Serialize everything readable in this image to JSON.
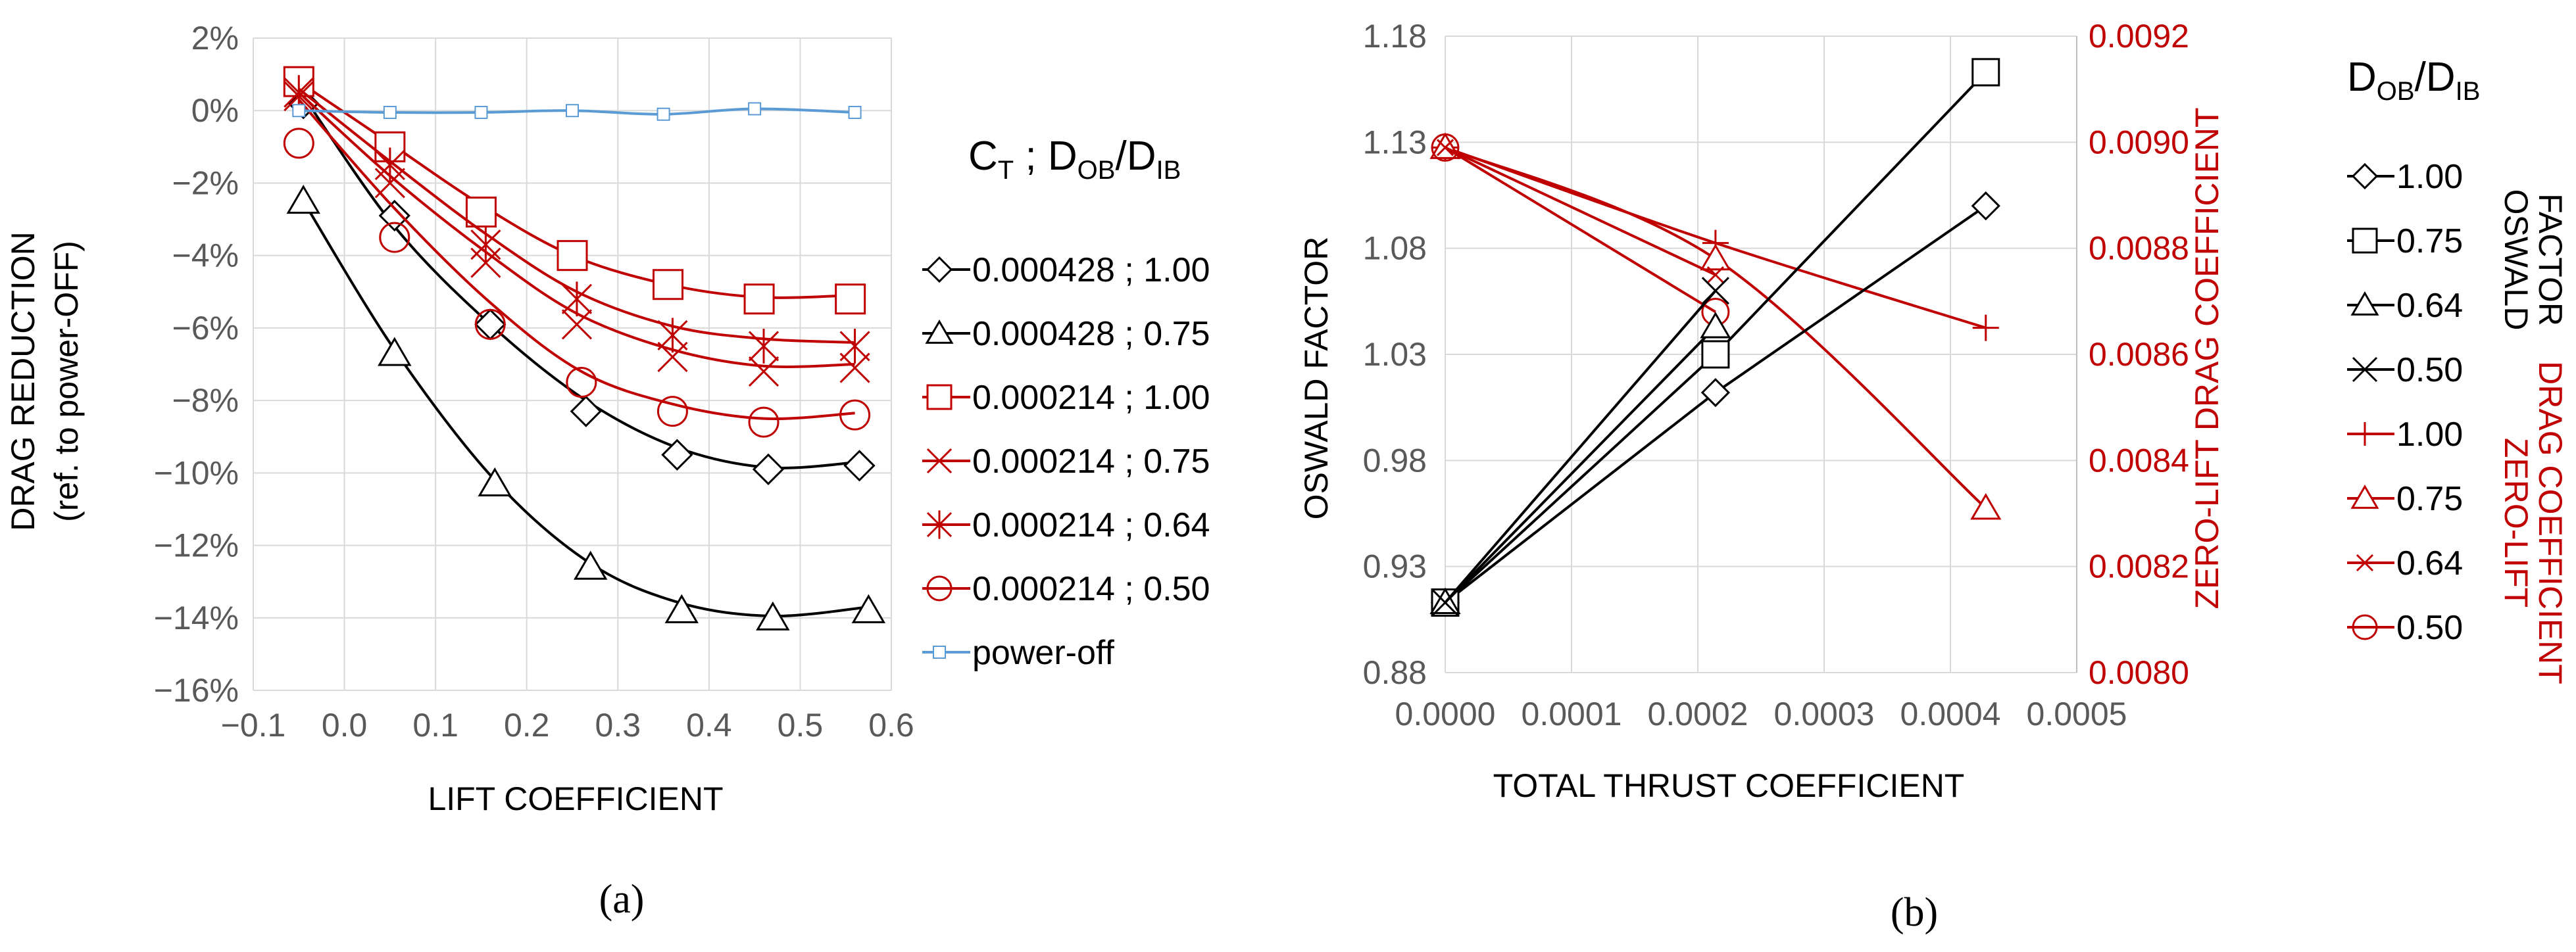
{
  "chart_data": [
    {
      "type": "line",
      "panel_label": "(a)",
      "xlabel": "LIFT  COEFFICIENT",
      "ylabel_line1": "DRAG  REDUCTION",
      "ylabel_line2": "(ref. to power-OFF)",
      "xlim": [
        -0.1,
        0.6
      ],
      "ylim": [
        -16,
        2
      ],
      "x_ticks": [
        -0.1,
        0.0,
        0.1,
        0.2,
        0.3,
        0.4,
        0.5,
        0.6
      ],
      "x_tick_labels": [
        "−0.1",
        "0.0",
        "0.1",
        "0.2",
        "0.3",
        "0.4",
        "0.5",
        "0.6"
      ],
      "y_ticks": [
        2,
        0,
        -2,
        -4,
        -6,
        -8,
        -10,
        -12,
        -14,
        -16
      ],
      "y_tick_labels": [
        "2%",
        "0%",
        "−2%",
        "−4%",
        "−6%",
        "−8%",
        "−10%",
        "−12%",
        "−14%",
        "−16%"
      ],
      "legend_title_main": "C",
      "legend_title_sub1": "T",
      "legend_title_mid": " ; D",
      "legend_title_sub2": "OB",
      "legend_title_slash": "/D",
      "legend_title_sub3": "IB",
      "series": [
        {
          "name": "0.000428 ; 1.00",
          "color": "#000000",
          "marker": "diamond",
          "x": [
            -0.045,
            0.055,
            0.16,
            0.265,
            0.365,
            0.465,
            0.565
          ],
          "y": [
            0.2,
            -2.9,
            -5.9,
            -8.3,
            -9.5,
            -9.9,
            -9.8
          ],
          "curve": [
            [
              -0.045,
              0.4
            ],
            [
              0.055,
              -3.2
            ],
            [
              0.16,
              -5.9
            ],
            [
              0.265,
              -8.0
            ],
            [
              0.365,
              -9.3
            ],
            [
              0.465,
              -9.85
            ],
            [
              0.565,
              -9.7
            ]
          ]
        },
        {
          "name": "0.000428 ; 0.75",
          "color": "#000000",
          "marker": "triangle",
          "x": [
            -0.045,
            0.055,
            0.165,
            0.27,
            0.37,
            0.47,
            0.575
          ],
          "y": [
            -2.5,
            -6.7,
            -10.3,
            -12.6,
            -13.8,
            -14.0,
            -13.8
          ],
          "curve": [
            [
              -0.045,
              -2.5
            ],
            [
              0.055,
              -6.6
            ],
            [
              0.165,
              -10.2
            ],
            [
              0.27,
              -12.5
            ],
            [
              0.37,
              -13.6
            ],
            [
              0.47,
              -13.95
            ],
            [
              0.575,
              -13.7
            ]
          ]
        },
        {
          "name": "0.000214 ; 1.00",
          "color": "#c00000",
          "marker": "square",
          "x": [
            -0.05,
            0.05,
            0.15,
            0.25,
            0.355,
            0.455,
            0.555
          ],
          "y": [
            0.8,
            -1.0,
            -2.8,
            -4.0,
            -4.8,
            -5.2,
            -5.2
          ],
          "curve": [
            [
              -0.05,
              0.8
            ],
            [
              0.05,
              -0.9
            ],
            [
              0.15,
              -2.6
            ],
            [
              0.25,
              -4.0
            ],
            [
              0.355,
              -4.8
            ],
            [
              0.455,
              -5.15
            ],
            [
              0.555,
              -5.1
            ]
          ]
        },
        {
          "name": "0.000214 ; 0.75",
          "color": "#c00000",
          "marker": "x",
          "x": [
            -0.05,
            0.05,
            0.155,
            0.255,
            0.36,
            0.46,
            0.56
          ],
          "y": [
            0.4,
            -2.0,
            -4.2,
            -5.9,
            -6.8,
            -7.2,
            -7.1
          ],
          "curve": [
            [
              -0.05,
              0.5
            ],
            [
              0.05,
              -1.8
            ],
            [
              0.155,
              -3.9
            ],
            [
              0.255,
              -5.6
            ],
            [
              0.36,
              -6.6
            ],
            [
              0.46,
              -7.05
            ],
            [
              0.56,
              -7.0
            ]
          ]
        },
        {
          "name": "0.000214 ; 0.64",
          "color": "#c00000",
          "marker": "star",
          "x": [
            -0.05,
            0.05,
            0.155,
            0.255,
            0.36,
            0.46,
            0.56
          ],
          "y": [
            0.5,
            -1.5,
            -3.7,
            -5.2,
            -6.2,
            -6.5,
            -6.5
          ],
          "curve": [
            [
              -0.05,
              0.6
            ],
            [
              0.05,
              -1.4
            ],
            [
              0.155,
              -3.4
            ],
            [
              0.255,
              -5.0
            ],
            [
              0.36,
              -5.95
            ],
            [
              0.46,
              -6.3
            ],
            [
              0.56,
              -6.4
            ]
          ]
        },
        {
          "name": "0.000214 ; 0.50",
          "color": "#c00000",
          "marker": "circle",
          "x": [
            -0.05,
            0.055,
            0.16,
            0.26,
            0.36,
            0.46,
            0.56
          ],
          "y": [
            -0.9,
            -3.5,
            -5.9,
            -7.5,
            -8.3,
            -8.6,
            -8.4
          ],
          "curve": [
            [
              -0.05,
              0.3
            ],
            [
              0.055,
              -2.7
            ],
            [
              0.16,
              -5.3
            ],
            [
              0.26,
              -7.2
            ],
            [
              0.36,
              -8.1
            ],
            [
              0.46,
              -8.5
            ],
            [
              0.56,
              -8.35
            ]
          ]
        },
        {
          "name": "power-off",
          "color": "#5b9bd5",
          "marker": "smallsquare",
          "x": [
            -0.05,
            0.05,
            0.15,
            0.25,
            0.35,
            0.45,
            0.56
          ],
          "y": [
            0.0,
            -0.05,
            -0.05,
            0.0,
            -0.1,
            0.05,
            -0.05
          ],
          "curve": [
            [
              -0.05,
              0.0
            ],
            [
              0.05,
              -0.05
            ],
            [
              0.15,
              -0.05
            ],
            [
              0.25,
              0.0
            ],
            [
              0.35,
              -0.1
            ],
            [
              0.45,
              0.05
            ],
            [
              0.56,
              -0.05
            ]
          ]
        }
      ]
    },
    {
      "type": "line",
      "panel_label": "(b)",
      "xlabel": "TOTAL THRUST COEFFICIENT",
      "ylabel_left": "OSWALD  FACTOR",
      "ylabel_right": "ZERO-LIFT DRAG COEFFICIENT",
      "xlim": [
        0.0,
        0.0005
      ],
      "ylim_left": [
        0.88,
        1.18
      ],
      "ylim_right": [
        0.008,
        0.0092
      ],
      "x_ticks": [
        0.0,
        0.0001,
        0.0002,
        0.0003,
        0.0004,
        0.0005
      ],
      "x_tick_labels": [
        "0.0000",
        "0.0001",
        "0.0002",
        "0.0003",
        "0.0004",
        "0.0005"
      ],
      "y_left_ticks": [
        1.18,
        1.13,
        1.08,
        1.03,
        0.98,
        0.93,
        0.88
      ],
      "y_left_tick_labels": [
        "1.18",
        "1.13",
        "1.08",
        "1.03",
        "0.98",
        "0.93",
        "0.88"
      ],
      "y_right_ticks": [
        0.0092,
        0.009,
        0.0088,
        0.0086,
        0.0084,
        0.0082,
        0.008
      ],
      "y_right_tick_labels": [
        "0.0092",
        "0.0090",
        "0.0088",
        "0.0086",
        "0.0084",
        "0.0082",
        "0.0080"
      ],
      "legend_title_main": "D",
      "legend_title_sub1": "OB",
      "legend_title_slash": "/D",
      "legend_title_sub2": "IB",
      "legend_side_oswald_1": "OSWALD",
      "legend_side_oswald_2": "FACTOR",
      "legend_side_cd_1": "ZERO-LIFT",
      "legend_side_cd_2": "DRAG COEFFICIENT",
      "series_oswald": [
        {
          "name": "1.00",
          "color": "#000000",
          "marker": "diamond",
          "x": [
            0.0,
            0.000214,
            0.000428
          ],
          "y": [
            0.913,
            1.012,
            1.1
          ]
        },
        {
          "name": "0.75",
          "color": "#000000",
          "marker": "square",
          "x": [
            0.0,
            0.000214,
            0.000428
          ],
          "y": [
            0.913,
            1.03,
            1.163
          ]
        },
        {
          "name": "0.64",
          "color": "#000000",
          "marker": "triangle",
          "x": [
            0.0,
            0.000214
          ],
          "y": [
            0.913,
            1.043
          ]
        },
        {
          "name": "0.50",
          "color": "#000000",
          "marker": "x",
          "x": [
            0.0,
            0.000214
          ],
          "y": [
            0.913,
            1.06
          ]
        }
      ],
      "series_cd0": [
        {
          "name": "1.00",
          "color": "#c00000",
          "marker": "plus",
          "x": [
            0.0,
            0.000214,
            0.000428
          ],
          "y": [
            0.00899,
            0.00881,
            0.00865
          ]
        },
        {
          "name": "0.75",
          "color": "#c00000",
          "marker": "triangle",
          "x": [
            0.0,
            0.000214,
            0.000428
          ],
          "y": [
            0.00899,
            0.00878,
            0.00831
          ]
        },
        {
          "name": "0.64",
          "color": "#c00000",
          "marker": "smallx",
          "x": [
            0.0,
            0.000214
          ],
          "y": [
            0.00899,
            0.00875
          ]
        },
        {
          "name": "0.50",
          "color": "#c00000",
          "marker": "circle",
          "x": [
            0.0,
            0.000214
          ],
          "y": [
            0.00899,
            0.00868
          ]
        }
      ]
    }
  ]
}
